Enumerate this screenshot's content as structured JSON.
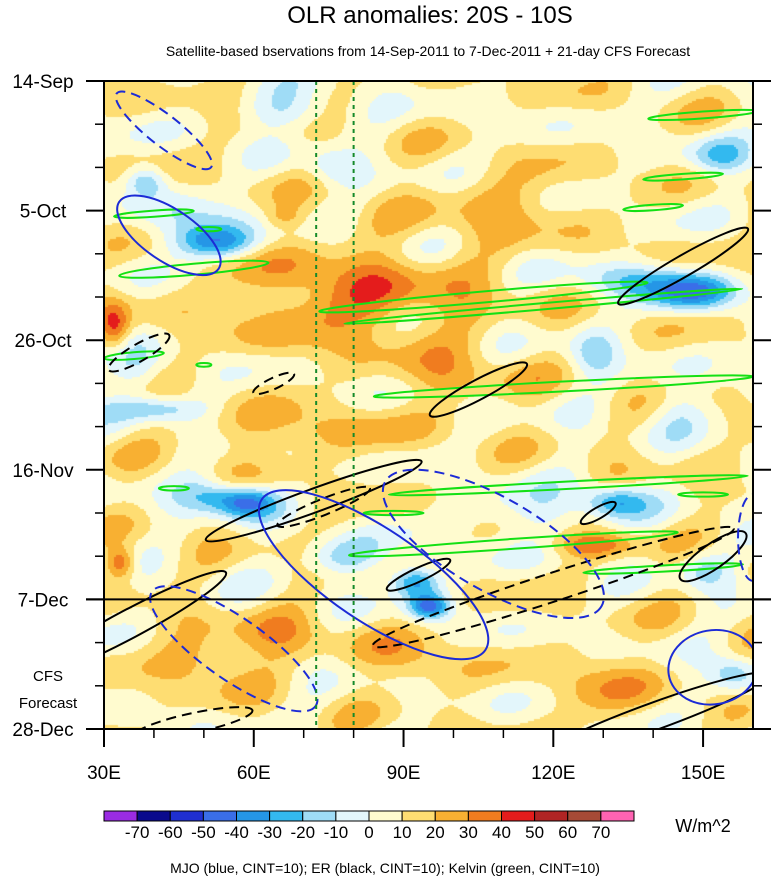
{
  "chart_data": {
    "type": "heatmap",
    "title": "OLR anomalies: 20S - 10S",
    "subtitle": "Satellite-based bservations from 14-Sep-2011 to 7-Dec-2011 + 21-day CFS Forecast",
    "x_ticks": [
      {
        "value": 30,
        "label": "30E"
      },
      {
        "value": 60,
        "label": "60E"
      },
      {
        "value": 90,
        "label": "90E"
      },
      {
        "value": 120,
        "label": "120E"
      },
      {
        "value": 150,
        "label": "150E"
      }
    ],
    "xlim": [
      30,
      160
    ],
    "y_ticks": [
      {
        "value": 0,
        "label": "14-Sep"
      },
      {
        "value": 21,
        "label": "5-Oct"
      },
      {
        "value": 42,
        "label": "26-Oct"
      },
      {
        "value": 63,
        "label": "16-Nov"
      },
      {
        "value": 84,
        "label": "7-Dec"
      },
      {
        "value": 105,
        "label": "28-Dec"
      }
    ],
    "ylim_days": [
      0,
      105
    ],
    "forecast_start_day": 84,
    "forecast_label_line1": "CFS",
    "forecast_label_line2": "Forecast",
    "reference_lines_lon": [
      72.5,
      80
    ],
    "colorbar": {
      "levels": [
        "-70",
        "-60",
        "-50",
        "-40",
        "-30",
        "-20",
        "-10",
        "0",
        "10",
        "20",
        "30",
        "40",
        "50",
        "60",
        "70"
      ],
      "colors": [
        "#9a2be2",
        "#0a0a8c",
        "#1f2fd1",
        "#3a6ee8",
        "#2596e6",
        "#33b9ef",
        "#9fdcf6",
        "#e3f6fb",
        "#fffbcf",
        "#fedd72",
        "#f8b032",
        "#f07c1f",
        "#e41c1c",
        "#b02424",
        "#a64a36",
        "#ff63b2"
      ],
      "units": "W/m^2"
    },
    "contour_legend": "MJO (blue, CINT=10); ER (black, CINT=10); Kelvin (green, CINT=10)",
    "contour_colors": {
      "mjo": "#1c2bd6",
      "er": "#000000",
      "kelvin": "#14e014"
    },
    "anomaly_features": [
      {
        "lon": 38,
        "day": 16,
        "dlon": 4,
        "dday": 2.5,
        "v": -3
      },
      {
        "lon": 52,
        "day": 26,
        "dlon": 8,
        "dday": 2.5,
        "v": -4
      },
      {
        "lon": 48,
        "day": 23,
        "dlon": 10,
        "dday": 4,
        "v": -2
      },
      {
        "lon": 68,
        "day": 5,
        "dlon": 10,
        "dday": 3,
        "v": -2
      },
      {
        "lon": 75,
        "day": 14,
        "dlon": 5,
        "dday": 3,
        "v": -1.5
      },
      {
        "lon": 66,
        "day": 22,
        "dlon": 4,
        "dday": 2,
        "v": 1.5
      },
      {
        "lon": 32,
        "day": 40,
        "dlon": 3,
        "dday": 4,
        "v": 3
      },
      {
        "lon": 40,
        "day": 53,
        "dlon": 10,
        "dday": 2,
        "v": -2.5
      },
      {
        "lon": 37,
        "day": 47,
        "dlon": 6,
        "dday": 4,
        "v": -1.5
      },
      {
        "lon": 80,
        "day": 35,
        "dlon": 25,
        "dday": 8,
        "v": 2.5
      },
      {
        "lon": 70,
        "day": 57,
        "dlon": 20,
        "dday": 4,
        "v": 1.5
      },
      {
        "lon": 58,
        "day": 68,
        "dlon": 6,
        "dday": 2.5,
        "v": -5
      },
      {
        "lon": 50,
        "day": 67,
        "dlon": 6,
        "dday": 3,
        "v": -2.5
      },
      {
        "lon": 78,
        "day": 77,
        "dlon": 8,
        "dday": 3,
        "v": -2.5
      },
      {
        "lon": 92,
        "day": 81,
        "dlon": 5,
        "dday": 2.5,
        "v": -4.5
      },
      {
        "lon": 95,
        "day": 85,
        "dlon": 4,
        "dday": 2,
        "v": -5
      },
      {
        "lon": 33,
        "day": 78,
        "dlon": 3,
        "dday": 2.5,
        "v": 3.5
      },
      {
        "lon": 65,
        "day": 90,
        "dlon": 12,
        "dday": 4,
        "v": 1.5
      },
      {
        "lon": 50,
        "day": 94,
        "dlon": 10,
        "dday": 4,
        "v": 2
      },
      {
        "lon": 92,
        "day": 94,
        "dlon": 8,
        "dday": 5,
        "v": 1.5
      },
      {
        "lon": 115,
        "day": 70,
        "dlon": 15,
        "dday": 4,
        "v": -1.5
      },
      {
        "lon": 132,
        "day": 68,
        "dlon": 6,
        "dday": 2.5,
        "v": -3.5
      },
      {
        "lon": 150,
        "day": 79,
        "dlon": 5,
        "dday": 3,
        "v": -2
      },
      {
        "lon": 128,
        "day": 75,
        "dlon": 8,
        "dday": 2,
        "v": 2.5
      },
      {
        "lon": 153,
        "day": 12,
        "dlon": 6,
        "dday": 3,
        "v": -2.5
      },
      {
        "lon": 148,
        "day": 34,
        "dlon": 9,
        "dday": 3,
        "v": -4.5
      },
      {
        "lon": 135,
        "day": 32,
        "dlon": 10,
        "dday": 3,
        "v": -2.5
      },
      {
        "lon": 128,
        "day": 44,
        "dlon": 5,
        "dday": 4,
        "v": -2
      },
      {
        "lon": 145,
        "day": 53,
        "dlon": 6,
        "dday": 4,
        "v": -1.5
      },
      {
        "lon": 156,
        "day": 96,
        "dlon": 5,
        "dday": 3,
        "v": -2.5
      },
      {
        "lon": 130,
        "day": 98,
        "dlon": 10,
        "dday": 6,
        "v": 1.5
      },
      {
        "lon": 110,
        "day": 20,
        "dlon": 15,
        "dday": 5,
        "v": 1.5
      },
      {
        "lon": 100,
        "day": 48,
        "dlon": 12,
        "dday": 4,
        "v": 1.5
      }
    ],
    "mjo_contours": [
      {
        "lon": 42,
        "day": 8,
        "rx": 12,
        "ry": 2.5,
        "rot": 38,
        "dash": true
      },
      {
        "lon": 43,
        "day": 25,
        "rx": 12,
        "ry": 4.2,
        "rot": 34,
        "dash": false
      },
      {
        "lon": 108,
        "day": 75,
        "rx": 25,
        "ry": 7.5,
        "rot": 30,
        "dash": true
      },
      {
        "lon": 84,
        "day": 80,
        "rx": 27,
        "ry": 7.5,
        "rot": 34,
        "dash": false
      },
      {
        "lon": 56,
        "day": 92,
        "rx": 20,
        "ry": 5,
        "rot": 35,
        "dash": true
      },
      {
        "lon": 152,
        "day": 95,
        "rx": 9,
        "ry": 6,
        "rot": -10,
        "dash": false
      },
      {
        "lon": 160,
        "day": 74,
        "rx": 3,
        "ry": 7,
        "rot": 0,
        "dash": true
      }
    ],
    "er_contours": [
      {
        "lon": 37,
        "day": 44,
        "rx": 7,
        "ry": 1.4,
        "rot": -30,
        "dash": true
      },
      {
        "lon": 64,
        "day": 49,
        "rx": 4.5,
        "ry": 0.9,
        "rot": -25,
        "dash": true
      },
      {
        "lon": 105,
        "day": 50,
        "rx": 11,
        "ry": 1.6,
        "rot": -28,
        "dash": false
      },
      {
        "lon": 72,
        "day": 68,
        "rx": 23,
        "ry": 1.9,
        "rot": -20,
        "dash": false
      },
      {
        "lon": 74,
        "day": 69,
        "rx": 10,
        "ry": 1.3,
        "rot": -22,
        "dash": true
      },
      {
        "lon": 120,
        "day": 82,
        "rx": 38,
        "ry": 2.3,
        "rot": -18,
        "dash": true
      },
      {
        "lon": 93,
        "day": 80,
        "rx": 7,
        "ry": 1.1,
        "rot": -25,
        "dash": false
      },
      {
        "lon": 129,
        "day": 70,
        "rx": 4,
        "ry": 0.9,
        "rot": -30,
        "dash": false
      },
      {
        "lon": 35,
        "day": 88,
        "rx": 22,
        "ry": 2.3,
        "rot": -28,
        "dash": false
      },
      {
        "lon": 146,
        "day": 30,
        "rx": 15,
        "ry": 1.7,
        "rot": -30,
        "dash": false
      },
      {
        "lon": 152,
        "day": 77,
        "rx": 8,
        "ry": 2,
        "rot": -35,
        "dash": false
      },
      {
        "lon": 48,
        "day": 104,
        "rx": 12,
        "ry": 1.6,
        "rot": -12,
        "dash": true
      },
      {
        "lon": 140,
        "day": 103,
        "rx": 25,
        "ry": 2.2,
        "rot": -20,
        "dash": false
      }
    ],
    "kelvin_contours": [
      {
        "lon": 40,
        "day": 21.5,
        "rx": 8,
        "ry": 0.5,
        "rot": -4,
        "dash": false
      },
      {
        "lon": 48,
        "day": 30.5,
        "rx": 15,
        "ry": 0.9,
        "rot": -5,
        "dash": false
      },
      {
        "lon": 51,
        "day": 24,
        "rx": 2.5,
        "ry": 0.35,
        "rot": 0,
        "dash": false
      },
      {
        "lon": 36,
        "day": 44.5,
        "rx": 6,
        "ry": 0.55,
        "rot": -5,
        "dash": false
      },
      {
        "lon": 106,
        "day": 35,
        "rx": 33,
        "ry": 0.9,
        "rot": -5,
        "dash": false
      },
      {
        "lon": 118,
        "day": 36.5,
        "rx": 40,
        "ry": 0.5,
        "rot": -5,
        "dash": false
      },
      {
        "lon": 140,
        "day": 20.5,
        "rx": 6,
        "ry": 0.45,
        "rot": -4,
        "dash": false
      },
      {
        "lon": 146,
        "day": 15.5,
        "rx": 8,
        "ry": 0.45,
        "rot": -4,
        "dash": false
      },
      {
        "lon": 150,
        "day": 5.5,
        "rx": 11,
        "ry": 0.55,
        "rot": -4,
        "dash": false
      },
      {
        "lon": 122,
        "day": 49.5,
        "rx": 38,
        "ry": 0.8,
        "rot": -3,
        "dash": false
      },
      {
        "lon": 123,
        "day": 65.5,
        "rx": 36,
        "ry": 0.6,
        "rot": -3,
        "dash": false
      },
      {
        "lon": 112,
        "day": 75,
        "rx": 33,
        "ry": 0.8,
        "rot": -4,
        "dash": false
      },
      {
        "lon": 142,
        "day": 79,
        "rx": 16,
        "ry": 0.5,
        "rot": -3,
        "dash": false
      },
      {
        "lon": 88,
        "day": 70,
        "rx": 6,
        "ry": 0.35,
        "rot": 0,
        "dash": false
      },
      {
        "lon": 44,
        "day": 66,
        "rx": 3,
        "ry": 0.35,
        "rot": 0,
        "dash": false
      },
      {
        "lon": 50,
        "day": 46,
        "rx": 1.5,
        "ry": 0.3,
        "rot": 0,
        "dash": false
      },
      {
        "lon": 150,
        "day": 67,
        "rx": 5,
        "ry": 0.35,
        "rot": 0,
        "dash": false
      }
    ]
  }
}
